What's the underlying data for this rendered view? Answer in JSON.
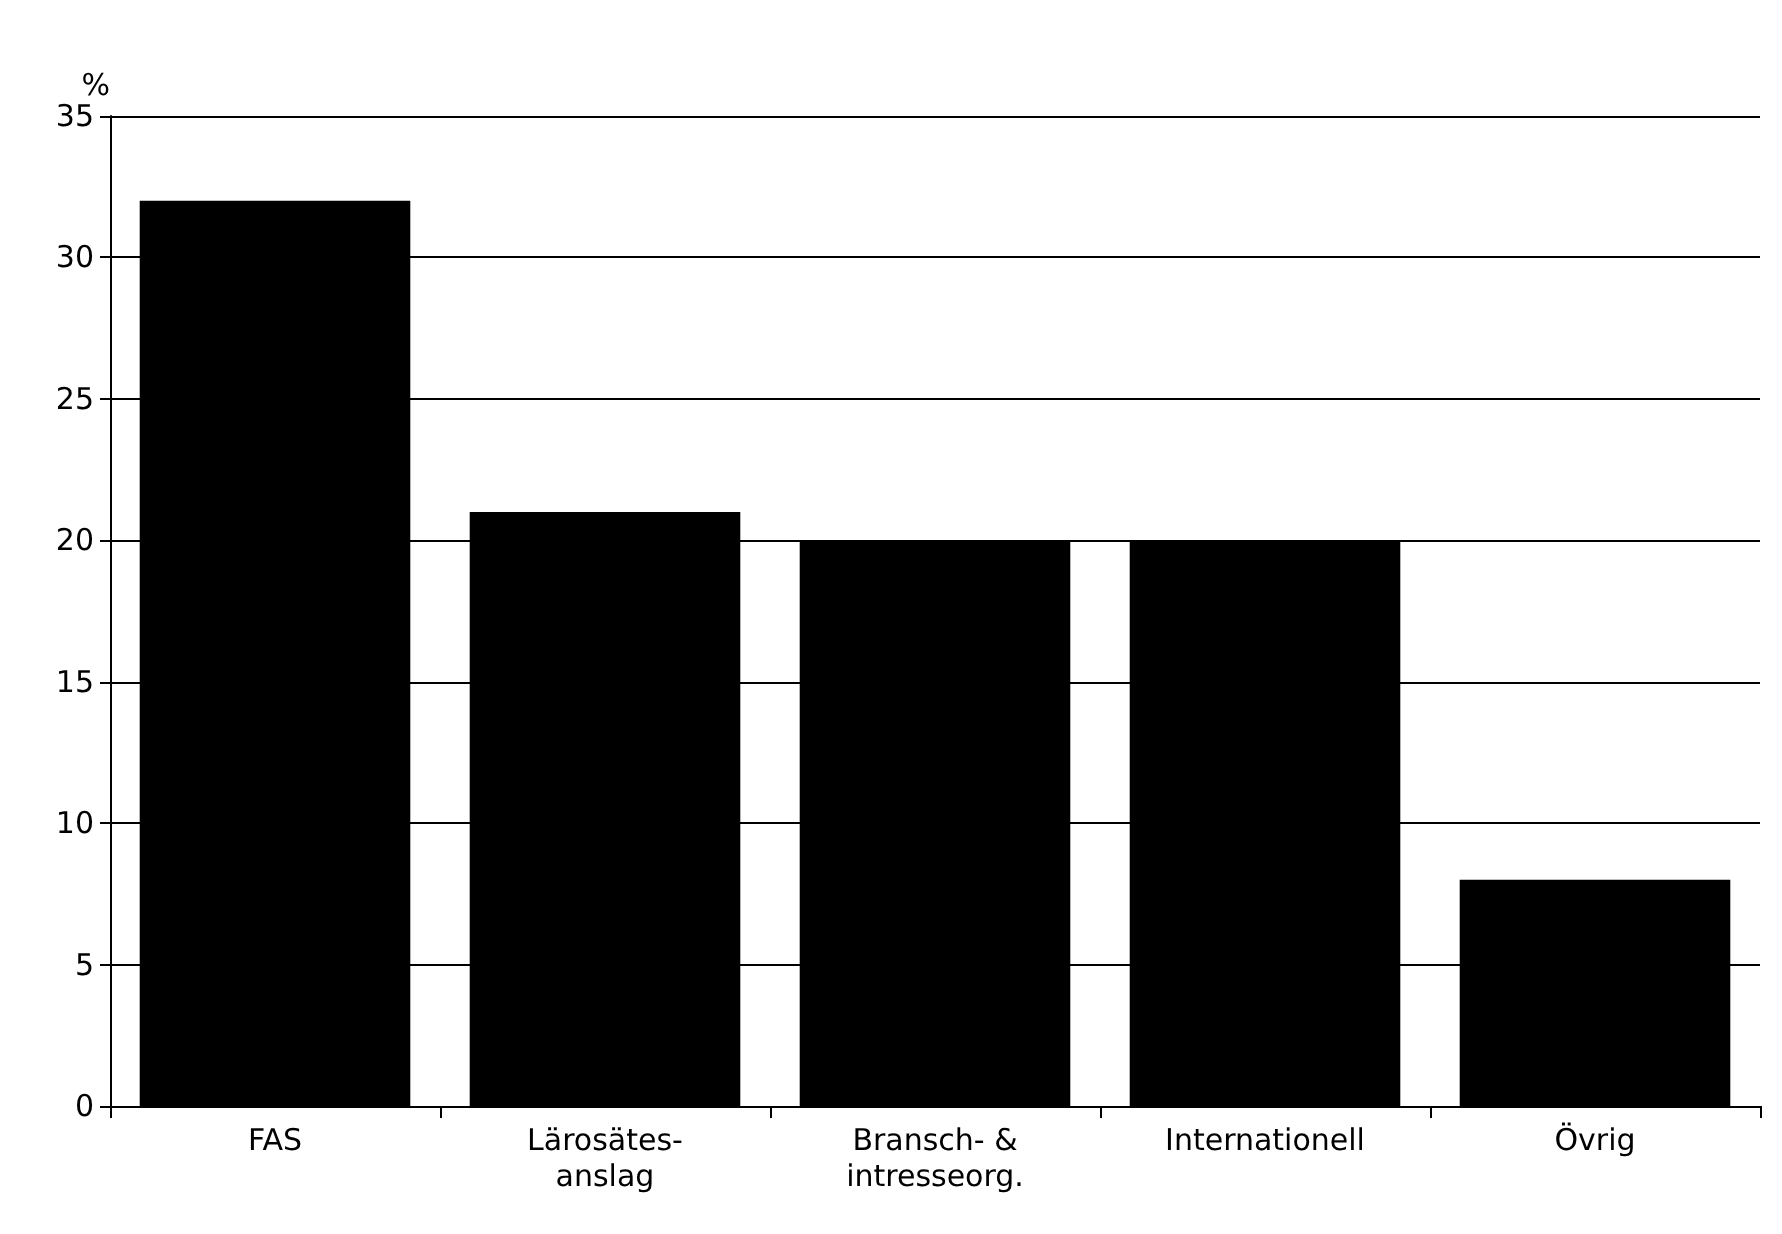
{
  "chart_data": {
    "type": "bar",
    "ylabel": "%",
    "categories": [
      "FAS",
      "Lärosätes-\nanslag",
      "Bransch- &\nintresseorg.",
      "Internationell",
      "Övrig"
    ],
    "values": [
      32,
      21,
      20,
      20,
      8
    ],
    "color": "#000000",
    "ylim": [
      0,
      35
    ],
    "yticks": [
      0,
      5,
      10,
      15,
      20,
      25,
      30,
      35
    ],
    "grid": "y"
  }
}
